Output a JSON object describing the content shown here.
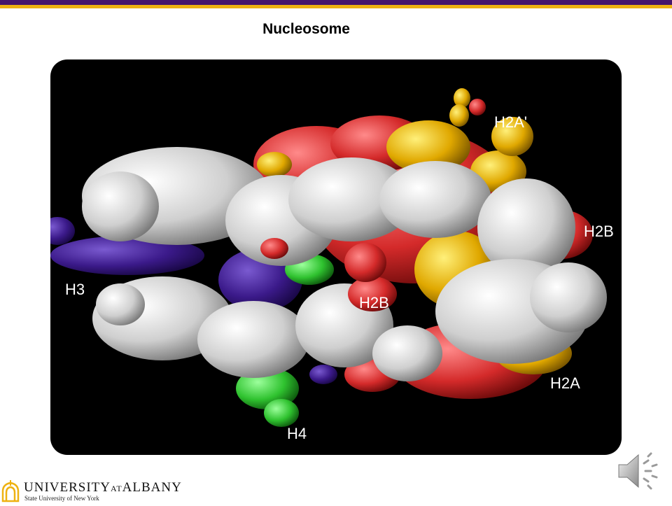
{
  "slide": {
    "title": "Nucleosome",
    "colors": {
      "purple": "#46166b",
      "gold": "#eeb211"
    }
  },
  "figure": {
    "labels": {
      "h2a_prime": "H2A'",
      "h2b_right": "H2B",
      "h3": "H3",
      "h2b_center": "H2B",
      "h2a": "H2A",
      "h4": "H4"
    },
    "colors": {
      "background": "#000000",
      "dna": "#d8d8d8",
      "h3": "#3b1a8a",
      "h4": "#2fc22f",
      "h2a": "#e0a800",
      "h2b": "#d42a2a"
    }
  },
  "footer": {
    "university_name_1": "UNIVERSITY",
    "university_name_at": "AT",
    "university_name_2": "ALBANY",
    "subtitle": "State University of New York"
  },
  "icons": {
    "audio": "speaker-icon",
    "logo": "university-logo-icon"
  }
}
